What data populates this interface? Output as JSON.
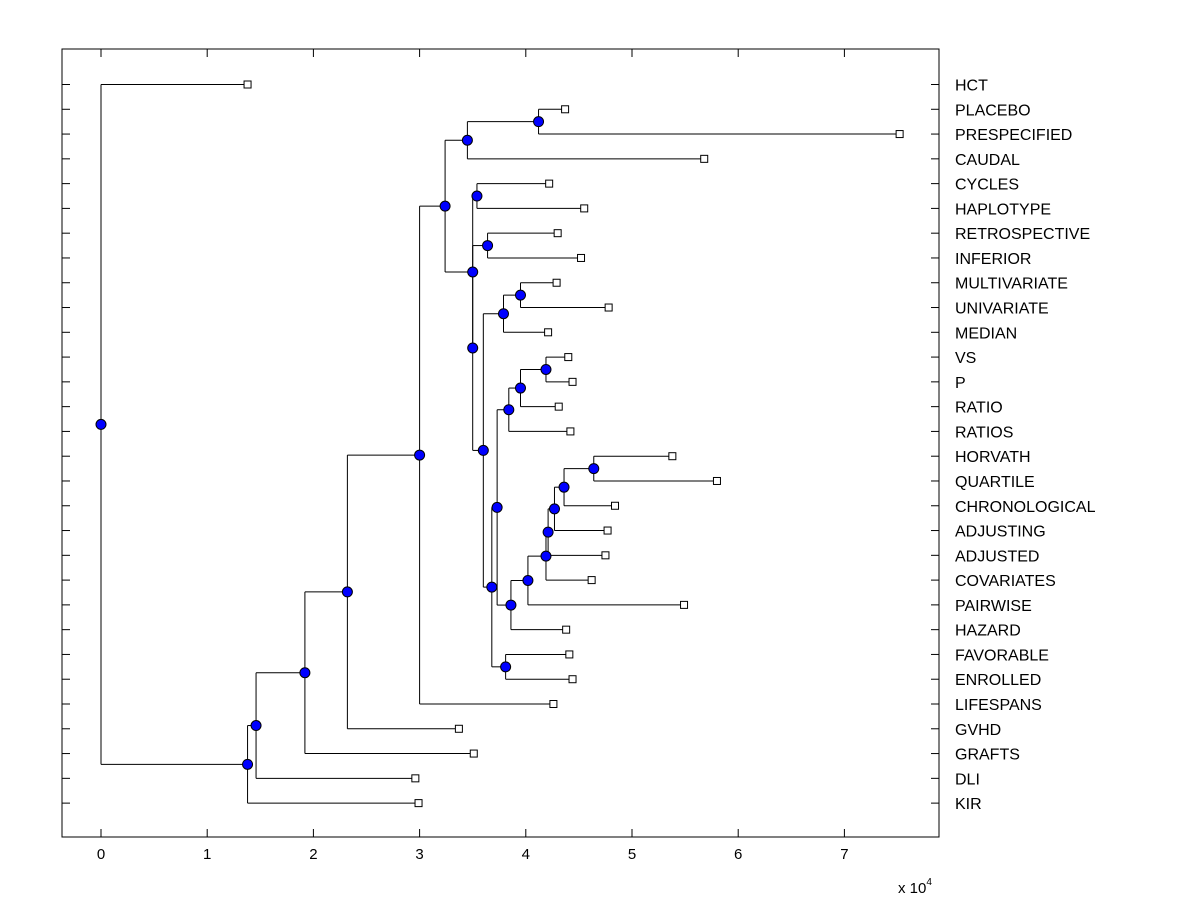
{
  "chart_data": {
    "type": "dendrogram",
    "x_axis": {
      "ticks": [
        0,
        1,
        2,
        3,
        4,
        5,
        6,
        7
      ],
      "tick_labels": [
        "0",
        "1",
        "2",
        "3",
        "4",
        "5",
        "6",
        "7"
      ],
      "xlim": [
        -0.36,
        7.9
      ],
      "multiplier_text": "x 10",
      "multiplier_exponent": "4"
    },
    "leaf_labels": [
      "HCT",
      "PLACEBO",
      "PRESPECIFIED",
      "CAUDAL",
      "CYCLES",
      "HAPLOTYPE",
      "RETROSPECTIVE",
      "INFERIOR",
      "MULTIVARIATE",
      "UNIVARIATE",
      "MEDIAN",
      "VS",
      "P",
      "RATIO",
      "RATIOS",
      "HORVATH",
      "QUARTILE",
      "CHRONOLOGICAL",
      "ADJUSTING",
      "ADJUSTED",
      "COVARIATES",
      "PAIRWISE",
      "HAZARD",
      "FAVORABLE",
      "ENROLLED",
      "LIFESPANS",
      "GVHD",
      "GRAFTS",
      "DLI",
      "KIR"
    ],
    "leaf_values": [
      1.38,
      4.37,
      7.52,
      5.68,
      4.22,
      4.55,
      4.3,
      4.52,
      4.29,
      4.78,
      4.21,
      4.4,
      4.44,
      4.31,
      4.42,
      5.38,
      5.8,
      4.84,
      4.77,
      4.75,
      4.62,
      5.49,
      4.38,
      4.41,
      4.44,
      4.26,
      3.37,
      3.51,
      2.96,
      2.99
    ],
    "nodes": [
      {
        "id": "n1",
        "x": 4.12,
        "children": [
          "L1",
          "L2"
        ]
      },
      {
        "id": "n2",
        "x": 3.45,
        "children": [
          "n1",
          "L3"
        ]
      },
      {
        "id": "n3",
        "x": 3.54,
        "children": [
          "L4",
          "L5"
        ]
      },
      {
        "id": "n4",
        "x": 3.64,
        "children": [
          "L6",
          "L7"
        ]
      },
      {
        "id": "n5",
        "x": 3.95,
        "children": [
          "L8",
          "L9"
        ]
      },
      {
        "id": "n6",
        "x": 3.79,
        "children": [
          "n5",
          "L10"
        ]
      },
      {
        "id": "n7",
        "x": 4.19,
        "children": [
          "L11",
          "L12"
        ]
      },
      {
        "id": "n8",
        "x": 3.95,
        "children": [
          "n7",
          "L13"
        ]
      },
      {
        "id": "n9",
        "x": 3.84,
        "children": [
          "n8",
          "L14"
        ]
      },
      {
        "id": "n10",
        "x": 4.64,
        "children": [
          "L15",
          "L16"
        ]
      },
      {
        "id": "n11",
        "x": 4.36,
        "children": [
          "n10",
          "L17"
        ]
      },
      {
        "id": "n12",
        "x": 4.27,
        "children": [
          "n11",
          "L18"
        ]
      },
      {
        "id": "n13",
        "x": 4.21,
        "children": [
          "n12",
          "L19"
        ]
      },
      {
        "id": "n14",
        "x": 4.19,
        "children": [
          "n13",
          "L20"
        ]
      },
      {
        "id": "n15",
        "x": 4.02,
        "children": [
          "n14",
          "L21"
        ]
      },
      {
        "id": "n16",
        "x": 3.86,
        "children": [
          "n15",
          "L22"
        ]
      },
      {
        "id": "n17",
        "x": 3.81,
        "children": [
          "L23",
          "L24"
        ]
      },
      {
        "id": "n18",
        "x": 3.73,
        "children": [
          "n9",
          "n16"
        ]
      },
      {
        "id": "n19",
        "x": 3.68,
        "children": [
          "n18",
          "n17"
        ]
      },
      {
        "id": "n20",
        "x": 3.6,
        "children": [
          "n6",
          "n19"
        ]
      },
      {
        "id": "n21",
        "x": 3.5,
        "children": [
          "n4",
          "n20"
        ]
      },
      {
        "id": "n22",
        "x": 3.5,
        "children": [
          "n3",
          "n21"
        ]
      },
      {
        "id": "n23",
        "x": 3.24,
        "children": [
          "n2",
          "n22"
        ]
      },
      {
        "id": "n24",
        "x": 3.0,
        "children": [
          "n23",
          "L25"
        ]
      },
      {
        "id": "n25",
        "x": 2.32,
        "children": [
          "n24",
          "L26"
        ]
      },
      {
        "id": "n26",
        "x": 1.92,
        "children": [
          "n25",
          "L27"
        ]
      },
      {
        "id": "n27",
        "x": 1.46,
        "children": [
          "n26",
          "L28"
        ]
      },
      {
        "id": "n28",
        "x": 1.38,
        "children": [
          "n27",
          "L29"
        ]
      },
      {
        "id": "n29",
        "x": 0.0,
        "children": [
          "L0",
          "n28"
        ]
      }
    ]
  }
}
